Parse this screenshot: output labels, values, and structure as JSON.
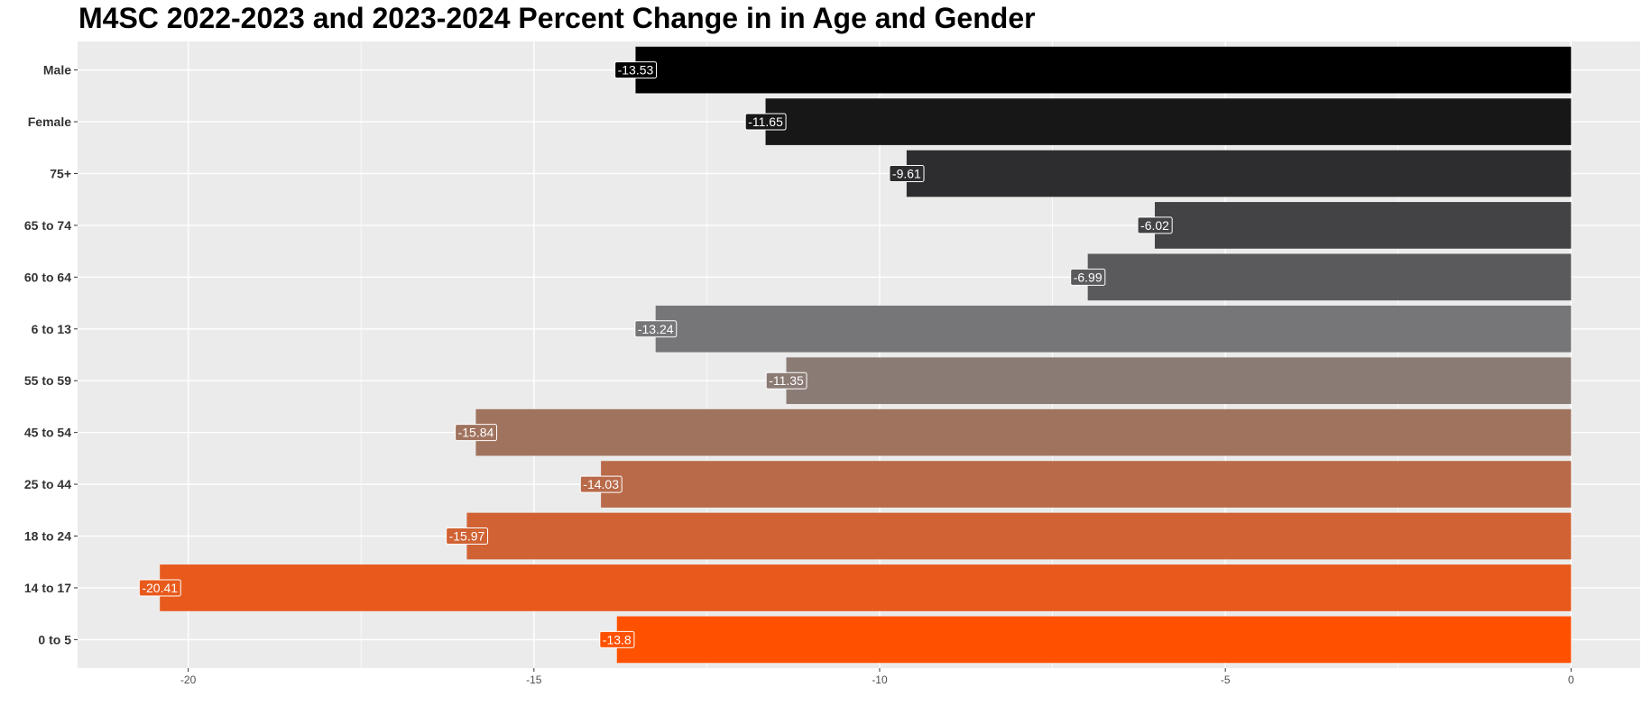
{
  "chart_data": {
    "type": "bar",
    "orientation": "horizontal",
    "title": "M4SC 2022-2023 and 2023-2024 Percent Change in in Age and Gender",
    "xlabel": "",
    "ylabel": "",
    "categories": [
      "Male",
      "Female",
      "75+",
      "65 to 74",
      "60 to 64",
      "6 to 13",
      "55 to 59",
      "45 to 54",
      "25 to 44",
      "18 to 24",
      "14 to 17",
      "0 to 5"
    ],
    "values": [
      -13.53,
      -11.65,
      -9.61,
      -6.02,
      -6.99,
      -13.24,
      -11.35,
      -15.84,
      -14.03,
      -15.97,
      -20.41,
      -13.8
    ],
    "labels": [
      "-13.53",
      "-11.65",
      "-9.61",
      "-6.02",
      "-6.99",
      "-13.24",
      "-11.35",
      "-15.84",
      "-14.03",
      "-15.97",
      "-20.41",
      "-13.8"
    ],
    "colors": [
      "#000000",
      "#171717",
      "#2d2d2f",
      "#434345",
      "#5a5a5d",
      "#767678",
      "#8b7b75",
      "#a0735e",
      "#b86a49",
      "#d06233",
      "#e85a1c",
      "#ff5100"
    ],
    "xlim": [
      -21.6,
      1.0
    ],
    "xticks": [
      -20,
      -15,
      -10,
      -5,
      0
    ],
    "xtick_labels": [
      "-20",
      "-15",
      "-10",
      "-5",
      "0"
    ],
    "grid": true,
    "legend": "none",
    "panel_background": "#ebebeb",
    "gridline_color": "#ffffff"
  }
}
